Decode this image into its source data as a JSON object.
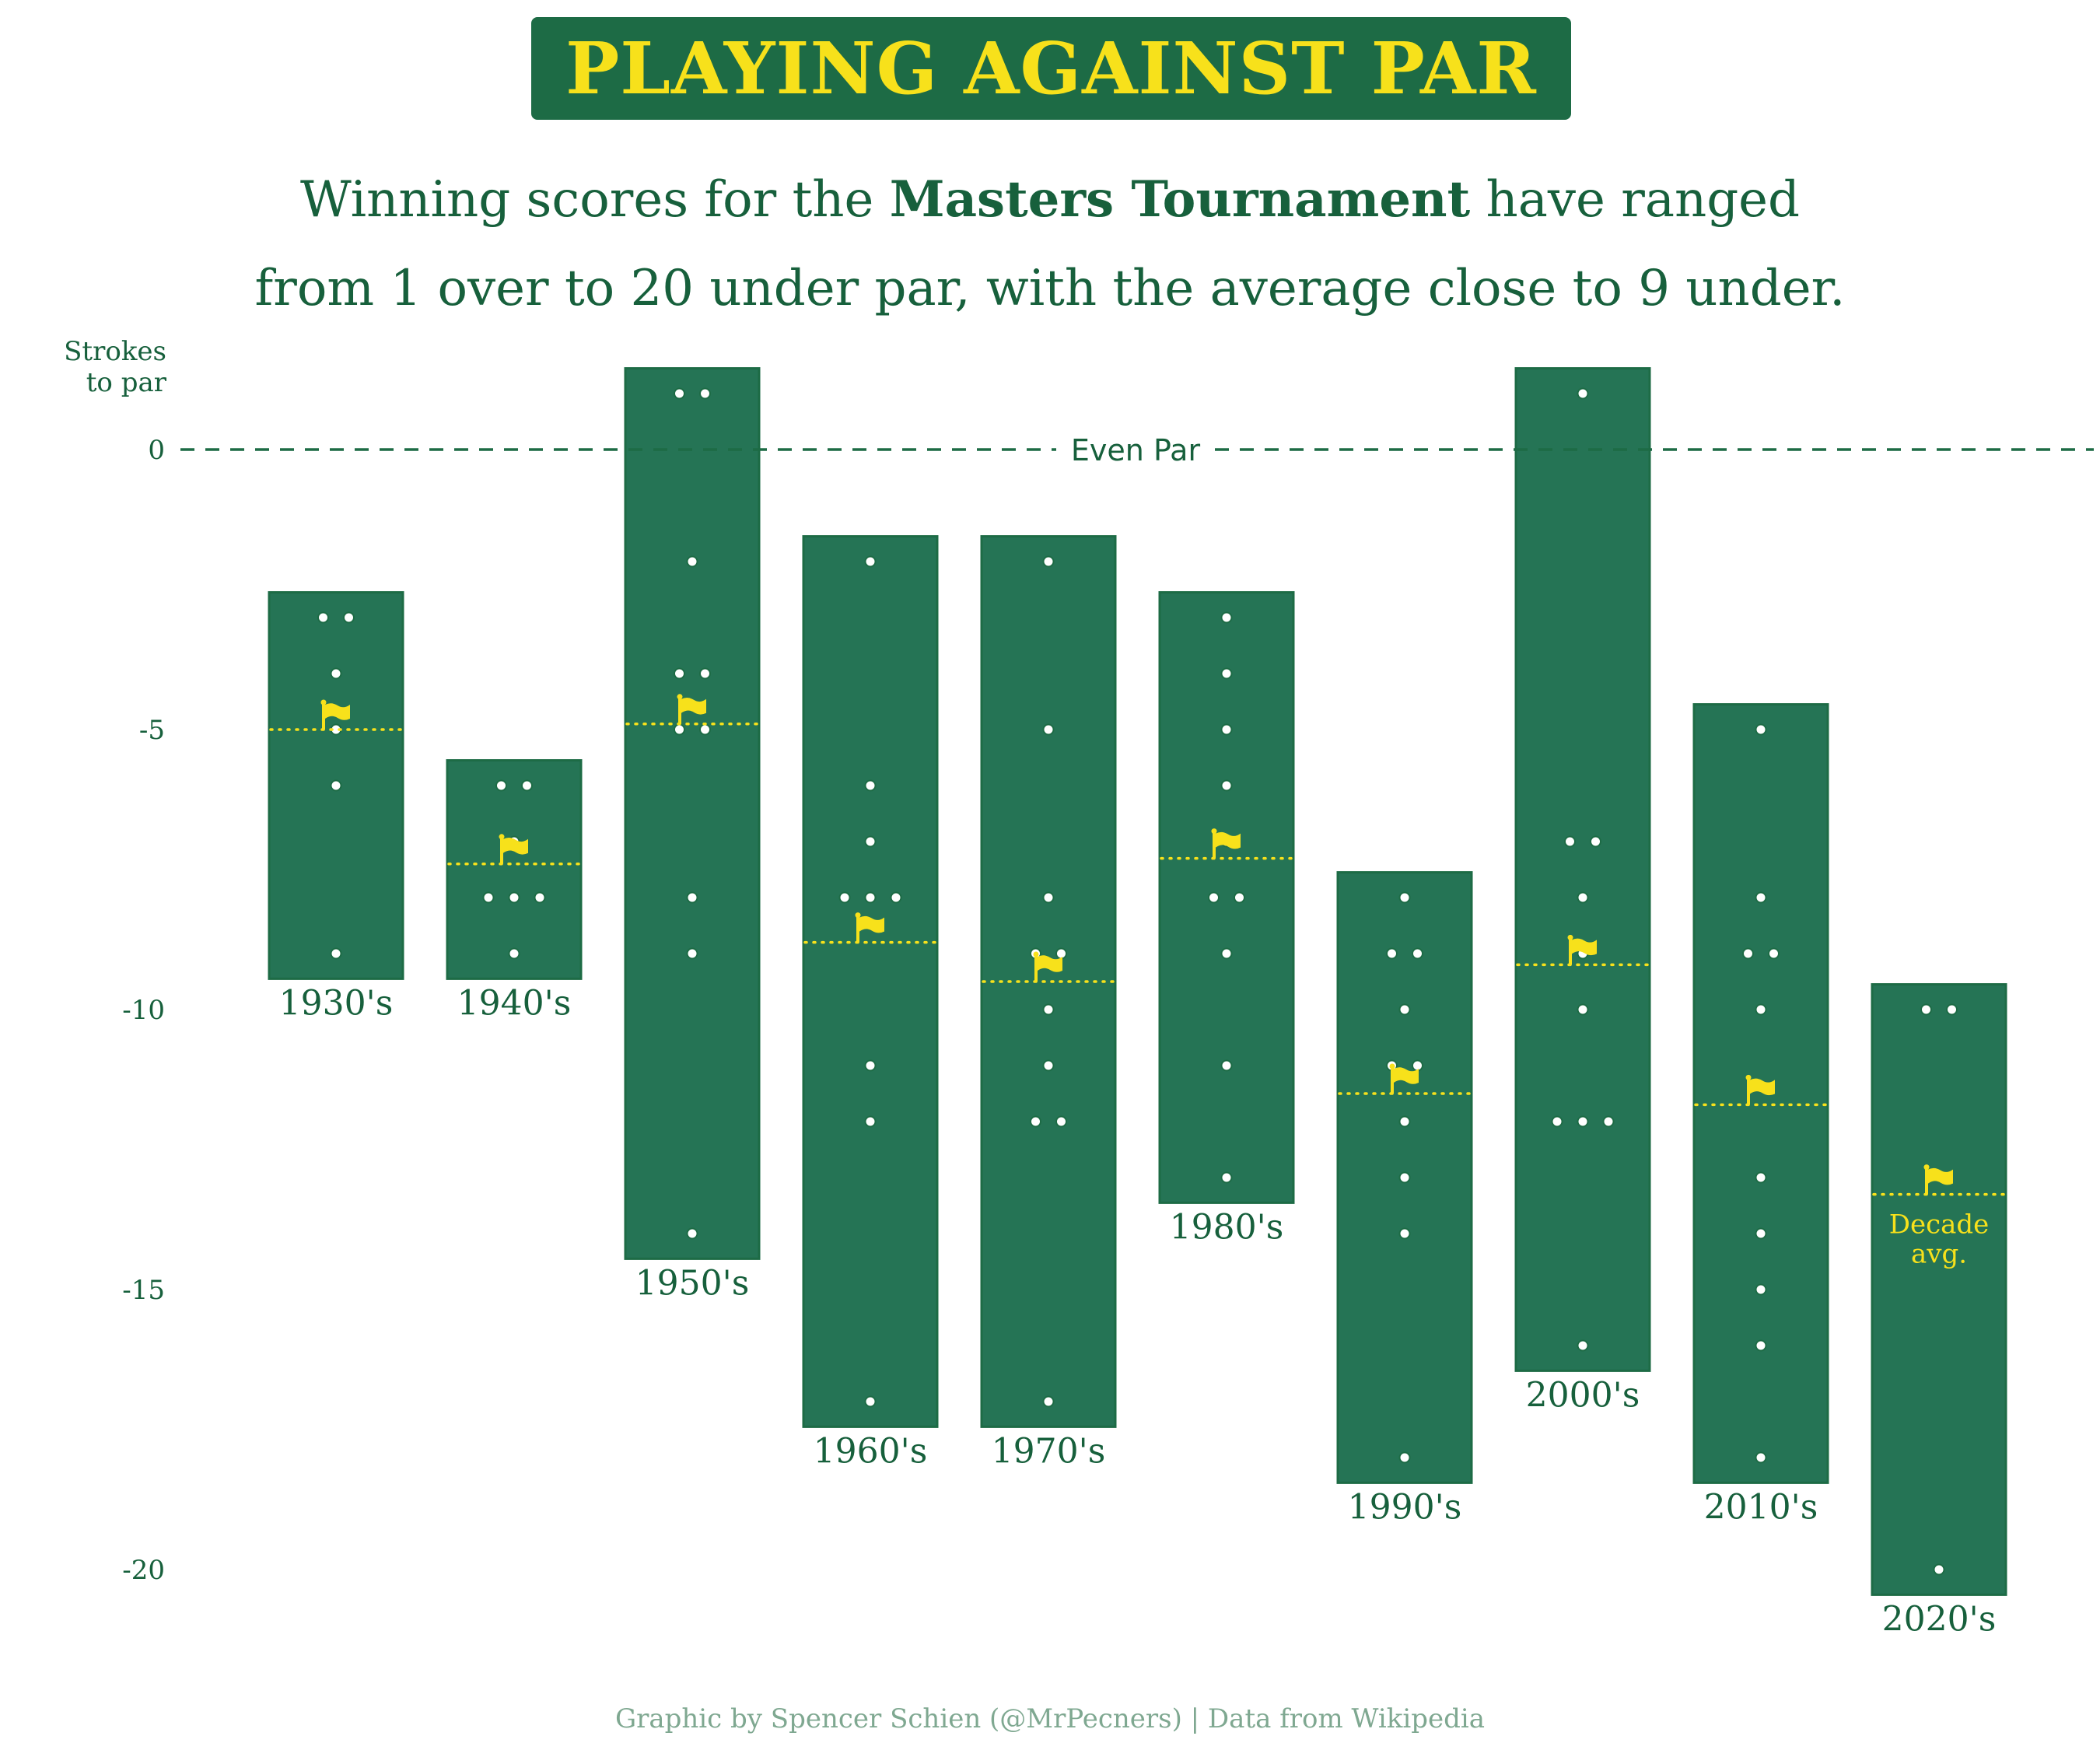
{
  "title": "PLAYING AGAINST PAR",
  "subtitle": {
    "pre": "Winning scores for the ",
    "bold": "Masters Tournament",
    "post_line1": " have ranged",
    "line2": "from 1 over to 20 under par, with the average close to 9 under."
  },
  "caption": "Graphic by Spencer Schien (@MrPecners) | Data from Wikipedia",
  "colors": {
    "green": "#1d6b45",
    "bar": "#257455",
    "text": "#17603c",
    "yellow": "#f7e11b",
    "caption": "#7fa891"
  },
  "chart_data": {
    "type": "range-bar",
    "ylabel": "Strokes\nto par",
    "ylabel_lines": [
      "Strokes",
      "to par"
    ],
    "yticks": [
      0,
      -5,
      -10,
      -15,
      -20
    ],
    "ytick_labels": [
      "0",
      "-5",
      "-10",
      "-15",
      "-20"
    ],
    "ylim": [
      -21,
      2
    ],
    "reference_line": {
      "y": 0,
      "label": "Even Par"
    },
    "legend": {
      "icon": "flag-icon",
      "label_lines": [
        "Decade",
        "avg."
      ]
    },
    "decades": [
      {
        "label": "1930's",
        "min": -9,
        "max": -3,
        "avg": -5.0,
        "scores": [
          -3,
          -3,
          -4,
          -5,
          -6,
          -9
        ]
      },
      {
        "label": "1940's",
        "min": -9,
        "max": -6,
        "avg": -7.4,
        "scores": [
          -6,
          -6,
          -7,
          -8,
          -8,
          -8,
          -9
        ]
      },
      {
        "label": "1950's",
        "min": -14,
        "max": 1,
        "avg": -4.9,
        "scores": [
          1,
          1,
          -2,
          -4,
          -4,
          -5,
          -5,
          -8,
          -9,
          -14
        ]
      },
      {
        "label": "1960's",
        "min": -17,
        "max": -2,
        "avg": -8.8,
        "scores": [
          -2,
          -6,
          -7,
          -8,
          -8,
          -8,
          -11,
          -12,
          -17
        ]
      },
      {
        "label": "1970's",
        "min": -17,
        "max": -2,
        "avg": -9.5,
        "scores": [
          -2,
          -5,
          -8,
          -9,
          -9,
          -10,
          -11,
          -12,
          -12,
          -17
        ]
      },
      {
        "label": "1980's",
        "min": -13,
        "max": -3,
        "avg": -7.3,
        "scores": [
          -3,
          -4,
          -5,
          -6,
          -7,
          -8,
          -8,
          -9,
          -11,
          -13
        ]
      },
      {
        "label": "1990's",
        "min": -18,
        "max": -8,
        "avg": -11.5,
        "scores": [
          -8,
          -9,
          -9,
          -10,
          -11,
          -11,
          -12,
          -13,
          -14,
          -18
        ]
      },
      {
        "label": "2000's",
        "min": -16,
        "max": 1,
        "avg": -9.2,
        "scores": [
          1,
          -7,
          -7,
          -8,
          -9,
          -10,
          -12,
          -12,
          -12,
          -16
        ]
      },
      {
        "label": "2010's",
        "min": -18,
        "max": -5,
        "avg": -11.7,
        "scores": [
          -5,
          -8,
          -9,
          -9,
          -10,
          -13,
          -14,
          -15,
          -16,
          -18
        ]
      },
      {
        "label": "2020's",
        "min": -20,
        "max": -10,
        "avg": -13.3,
        "scores": [
          -10,
          -10,
          -20
        ]
      }
    ]
  }
}
